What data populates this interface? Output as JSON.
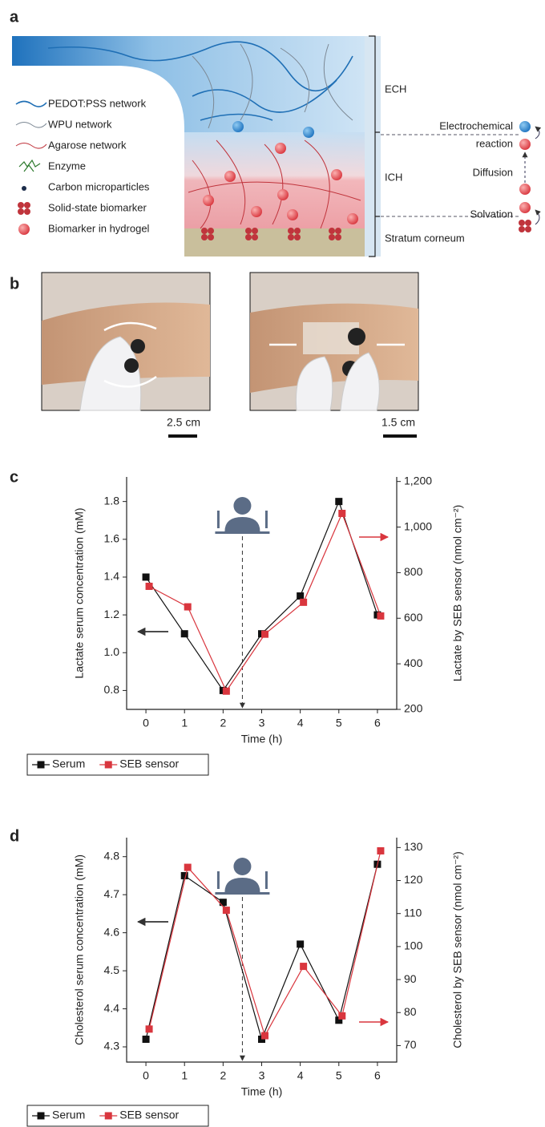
{
  "panels": [
    "a",
    "b",
    "c",
    "d"
  ],
  "diagram": {
    "legend": [
      "PEDOT:PSS network",
      "WPU network",
      "Agarose network",
      "Enzyme",
      "Carbon microparticles",
      "Solid-state biomarker",
      "Biomarker in hydrogel"
    ],
    "layers": [
      "ECH",
      "ICH",
      "Stratum corneum"
    ],
    "process": {
      "reaction": [
        "Electrochemical",
        "reaction"
      ],
      "diffusion": "Diffusion",
      "solvation": "Solvation"
    }
  },
  "photos": {
    "scale_bars": [
      "2.5 cm",
      "1.5 cm"
    ]
  },
  "chart_data": [
    {
      "type": "line",
      "xlabel": "Time (h)",
      "ylabel": "Lactate serum concentration (mM)",
      "y2label": "Lactate by SEB sensor (nmol cm⁻²)",
      "x": [
        0,
        1,
        2,
        3,
        4,
        5,
        6
      ],
      "xlim": [
        -0.5,
        6.5
      ],
      "xticks": [
        0,
        1,
        2,
        3,
        4,
        5,
        6
      ],
      "ylim": [
        0.7,
        1.93
      ],
      "yticks": [
        0.8,
        {
          "value": 1,
          "label": "1.0"
        },
        1.2,
        1.4,
        1.6,
        1.8
      ],
      "y2lim": [
        200,
        1220
      ],
      "y2ticks": [
        200,
        400,
        600,
        800,
        {
          "value": 1000,
          "label": "1,000"
        },
        {
          "value": 1200,
          "label": "1,200"
        }
      ],
      "vline_x": 2.5,
      "legend": "below",
      "series": [
        {
          "name": "Serum",
          "color": "#111111",
          "values": [
            1.4,
            1.1,
            0.8,
            1.1,
            1.3,
            1.8,
            1.2
          ]
        },
        {
          "name": "SEB sensor",
          "color": "#d9363e",
          "axis": "y2",
          "values": [
            740,
            650,
            280,
            530,
            670,
            1060,
            610
          ]
        }
      ]
    },
    {
      "type": "line",
      "xlabel": "Time (h)",
      "ylabel": "Cholesterol serum concentration (mM)",
      "y2label": "Cholesterol by SEB sensor (nmol cm⁻²)",
      "x": [
        0,
        1,
        2,
        3,
        4,
        5,
        6
      ],
      "xlim": [
        -0.5,
        6.5
      ],
      "xticks": [
        0,
        1,
        2,
        3,
        4,
        5,
        6
      ],
      "ylim": [
        4.26,
        4.85
      ],
      "yticks": [
        4.3,
        4.4,
        4.5,
        4.6,
        4.7,
        4.8
      ],
      "y2lim": [
        65,
        133
      ],
      "y2ticks": [
        70,
        80,
        90,
        100,
        110,
        120,
        130
      ],
      "vline_x": 2.5,
      "legend": "below",
      "series": [
        {
          "name": "Serum",
          "color": "#111111",
          "values": [
            4.32,
            4.75,
            4.68,
            4.32,
            4.57,
            4.37,
            4.78
          ]
        },
        {
          "name": "SEB sensor",
          "color": "#d9363e",
          "axis": "y2",
          "values": [
            75,
            124,
            111,
            73,
            94,
            79,
            129
          ]
        }
      ]
    }
  ]
}
